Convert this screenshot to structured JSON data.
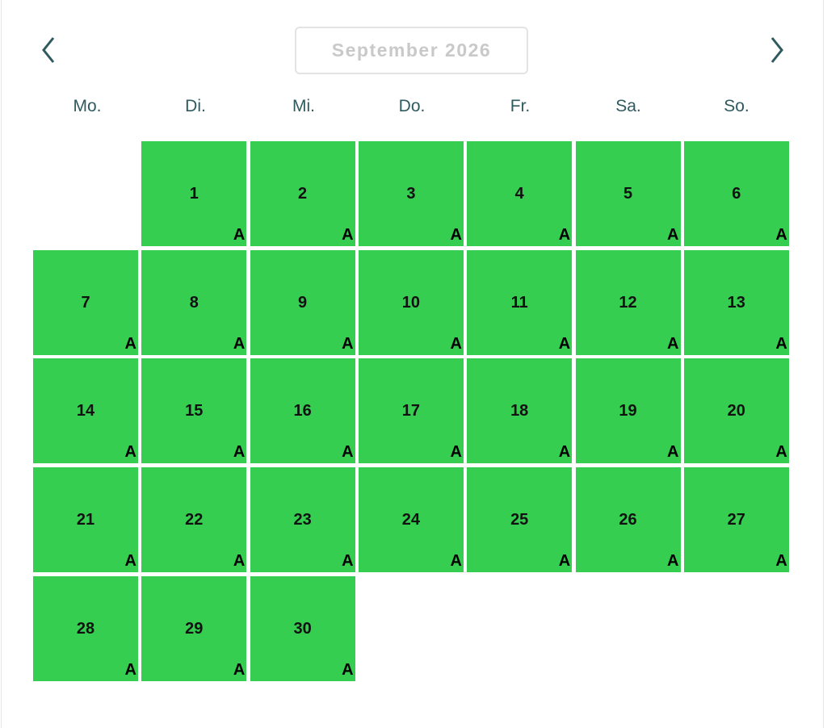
{
  "header": {
    "month_label": "September 2026",
    "prev_icon": "chevron-left-icon",
    "next_icon": "chevron-right-icon"
  },
  "weekdays": [
    "Mo.",
    "Di.",
    "Mi.",
    "Do.",
    "Fr.",
    "Sa.",
    "So."
  ],
  "colors": {
    "available": "#36ce50",
    "weekday_text": "#2f5a5e",
    "month_text": "#c9c9c9"
  },
  "first_weekday_offset": 1,
  "days": [
    {
      "day": "1",
      "status": "A"
    },
    {
      "day": "2",
      "status": "A"
    },
    {
      "day": "3",
      "status": "A"
    },
    {
      "day": "4",
      "status": "A"
    },
    {
      "day": "5",
      "status": "A"
    },
    {
      "day": "6",
      "status": "A"
    },
    {
      "day": "7",
      "status": "A"
    },
    {
      "day": "8",
      "status": "A"
    },
    {
      "day": "9",
      "status": "A"
    },
    {
      "day": "10",
      "status": "A"
    },
    {
      "day": "11",
      "status": "A"
    },
    {
      "day": "12",
      "status": "A"
    },
    {
      "day": "13",
      "status": "A"
    },
    {
      "day": "14",
      "status": "A"
    },
    {
      "day": "15",
      "status": "A"
    },
    {
      "day": "16",
      "status": "A"
    },
    {
      "day": "17",
      "status": "A"
    },
    {
      "day": "18",
      "status": "A"
    },
    {
      "day": "19",
      "status": "A"
    },
    {
      "day": "20",
      "status": "A"
    },
    {
      "day": "21",
      "status": "A"
    },
    {
      "day": "22",
      "status": "A"
    },
    {
      "day": "23",
      "status": "A"
    },
    {
      "day": "24",
      "status": "A"
    },
    {
      "day": "25",
      "status": "A"
    },
    {
      "day": "26",
      "status": "A"
    },
    {
      "day": "27",
      "status": "A"
    },
    {
      "day": "28",
      "status": "A"
    },
    {
      "day": "29",
      "status": "A"
    },
    {
      "day": "30",
      "status": "A"
    }
  ]
}
